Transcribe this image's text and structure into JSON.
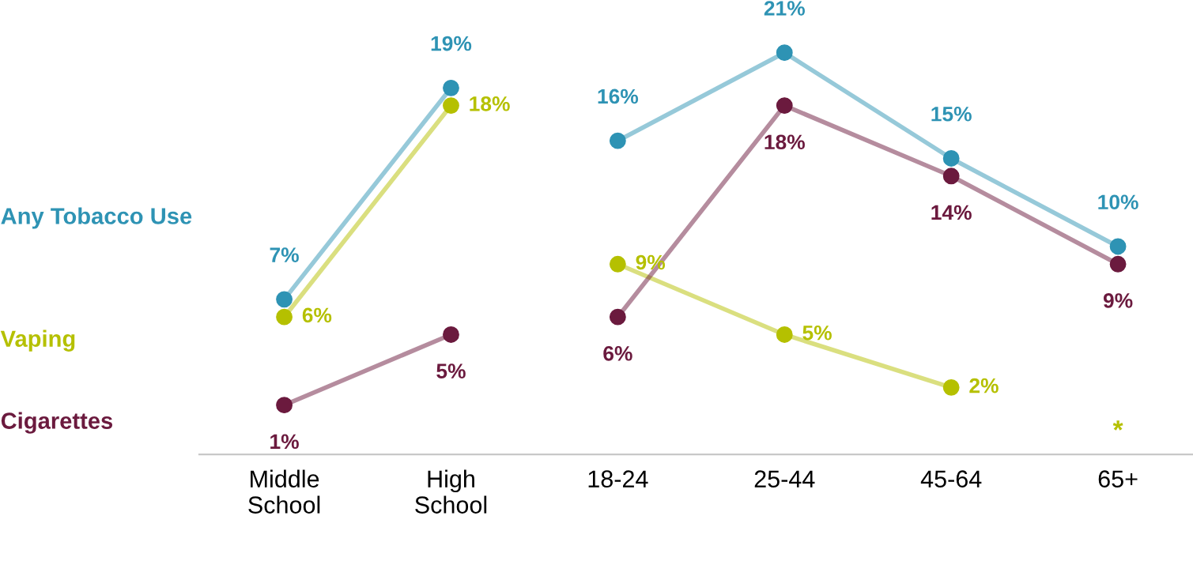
{
  "chart_data": {
    "type": "line",
    "categories": [
      "Middle\nSchool",
      "High\nSchool",
      "18-24",
      "25-44",
      "45-64",
      "65+"
    ],
    "series": [
      {
        "name": "Any Tobacco Use",
        "color": "#2e93b4",
        "values": [
          7,
          19,
          null,
          null,
          null,
          null
        ],
        "value_labels": [
          "7%",
          "19%",
          null,
          null,
          null,
          null
        ]
      },
      {
        "name": "Vaping",
        "color": "#b5c000",
        "values": [
          6,
          18,
          null,
          null,
          null,
          null
        ],
        "value_labels": [
          "6%",
          "18%",
          null,
          null,
          null,
          null
        ]
      },
      {
        "name": "Cigarettes",
        "color": "#6b1a3e",
        "values": [
          1,
          5,
          null,
          null,
          null,
          null
        ],
        "value_labels": [
          "1%",
          "5%",
          null,
          null,
          null,
          null
        ]
      },
      {
        "color": "#2e93b4",
        "values": [
          null,
          null,
          16,
          21,
          15,
          10
        ],
        "value_labels": [
          null,
          null,
          "16%",
          "21%",
          "15%",
          "10%"
        ]
      },
      {
        "color": "#b5c000",
        "values": [
          null,
          null,
          9,
          5,
          2,
          null
        ],
        "value_labels": [
          null,
          null,
          "9%",
          "5%",
          "2%",
          null
        ]
      },
      {
        "color": "#6b1a3e",
        "values": [
          null,
          null,
          6,
          18,
          14,
          9
        ],
        "value_labels": [
          null,
          null,
          "6%",
          "18%",
          "14%",
          "9%"
        ]
      }
    ],
    "tick_labels": "x",
    "legend": "left",
    "marker": "circle",
    "line_style": "solid",
    "annotations": [
      "*"
    ]
  }
}
